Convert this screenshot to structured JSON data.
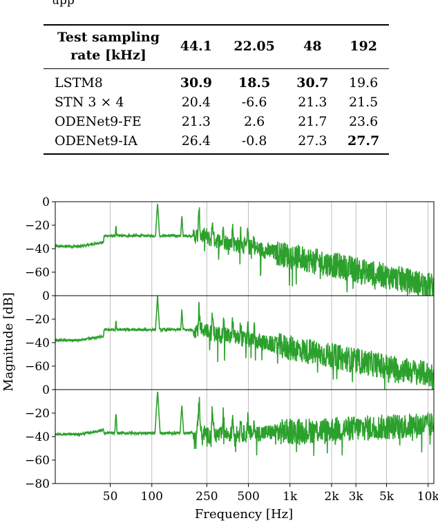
{
  "caption_fragment": "upp",
  "table": {
    "header": {
      "label_line1": "Test sampling",
      "label_line2": "rate [kHz]",
      "columns": [
        "44.1",
        "22.05",
        "48",
        "192"
      ]
    },
    "rows": [
      {
        "model": "LSTM8",
        "values": [
          "30.9",
          "18.5",
          "30.7",
          "19.6"
        ],
        "bold": [
          true,
          true,
          true,
          false
        ]
      },
      {
        "model": "STN 3 × 4",
        "values": [
          "20.4",
          "-6.6",
          "21.3",
          "21.5"
        ],
        "bold": [
          false,
          false,
          false,
          false
        ]
      },
      {
        "model": "ODENet9-FE",
        "values": [
          "21.3",
          "2.6",
          "21.7",
          "23.6"
        ],
        "bold": [
          false,
          false,
          false,
          false
        ]
      },
      {
        "model": "ODENet9-IA",
        "values": [
          "26.4",
          "-0.8",
          "27.3",
          "27.7"
        ],
        "bold": [
          false,
          false,
          false,
          true
        ]
      }
    ]
  },
  "chart_data": {
    "type": "line",
    "xlabel": "Frequency [Hz]",
    "ylabel": "Magnitude [dB]",
    "xscale": "log",
    "xlim": [
      20,
      11000
    ],
    "x_ticks": [
      50,
      100,
      250,
      500,
      1000,
      2000,
      3000,
      5000,
      10000
    ],
    "x_tick_labels": [
      "50",
      "100",
      "250",
      "500",
      "1k",
      "2k",
      "3k",
      "5k",
      "10k"
    ],
    "grid": "vertical",
    "line_color": "#2ca02c",
    "panels": [
      {
        "ylim": [
          -80,
          0
        ],
        "y_tick_labels": [
          "0",
          "−20",
          "−40",
          "−60"
        ],
        "y_ticks": [
          0,
          -20,
          -40,
          -60
        ],
        "floor_mid": -37,
        "floor_end": -72,
        "decay_start": 1000
      },
      {
        "ylim": [
          -80,
          0
        ],
        "y_tick_labels": [
          "0",
          "−20",
          "−40",
          "−60"
        ],
        "y_ticks": [
          0,
          -20,
          -40,
          -60
        ],
        "floor_mid": -37,
        "floor_end": -68,
        "decay_start": 1000
      },
      {
        "ylim": [
          -80,
          0
        ],
        "y_tick_labels": [
          "0",
          "−20",
          "−40",
          "−60",
          "−80"
        ],
        "y_ticks": [
          0,
          -20,
          -40,
          -60,
          -80
        ],
        "floor_mid": -45,
        "floor_end": -30,
        "decay_start": 1200
      }
    ],
    "harmonics_hz": [
      55,
      110,
      165,
      220,
      275,
      330,
      385,
      440,
      495,
      550
    ],
    "harmonic_peaks_db": [
      -20,
      0,
      -12,
      -8,
      -15,
      -18,
      -20,
      -22,
      -24,
      -26
    ]
  }
}
